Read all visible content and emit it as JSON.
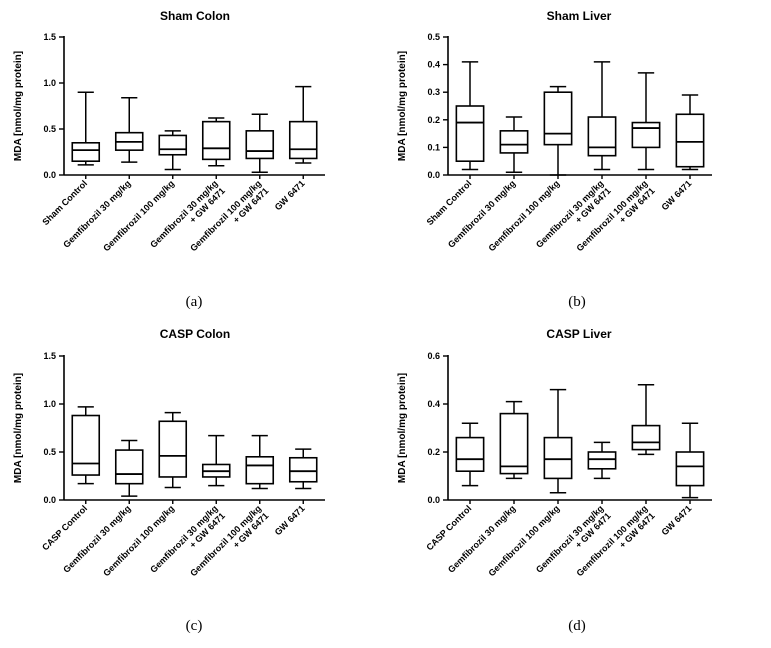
{
  "figure": {
    "panel_labels": [
      "(a)",
      "(b)",
      "(c)",
      "(d)"
    ]
  },
  "chart_data": [
    {
      "type": "box",
      "title": "Sham Colon",
      "ylabel": "MDA [nmol/mg protein]",
      "ylim": [
        0,
        1.5
      ],
      "yticks": [
        0,
        0.5,
        1.0,
        1.5
      ],
      "ytick_labels": [
        "0.0",
        "0.5",
        "1.0",
        "1.5"
      ],
      "categories": [
        "Sham Control",
        "Gemfibrozil 30 mg/kg",
        "Gemfibrozil 100 mg/kg",
        "Gemfibrozil 30 mg/kg + GW 6471",
        "Gemfibrozil 100 mg/kg + GW 6471",
        "GW 6471"
      ],
      "boxes": [
        {
          "min": 0.11,
          "q1": 0.15,
          "median": 0.27,
          "q3": 0.35,
          "max": 0.9
        },
        {
          "min": 0.14,
          "q1": 0.27,
          "median": 0.36,
          "q3": 0.46,
          "max": 0.84
        },
        {
          "min": 0.06,
          "q1": 0.22,
          "median": 0.28,
          "q3": 0.43,
          "max": 0.48
        },
        {
          "min": 0.1,
          "q1": 0.17,
          "median": 0.29,
          "q3": 0.58,
          "max": 0.62
        },
        {
          "min": 0.03,
          "q1": 0.18,
          "median": 0.26,
          "q3": 0.48,
          "max": 0.66
        },
        {
          "min": 0.13,
          "q1": 0.18,
          "median": 0.28,
          "q3": 0.58,
          "max": 0.96
        }
      ]
    },
    {
      "type": "box",
      "title": "Sham Liver",
      "ylabel": "MDA [nmol/mg protein]",
      "ylim": [
        0,
        0.5
      ],
      "yticks": [
        0,
        0.1,
        0.2,
        0.3,
        0.4,
        0.5
      ],
      "ytick_labels": [
        "0.0",
        "0.1",
        "0.2",
        "0.3",
        "0.4",
        "0.5"
      ],
      "categories": [
        "Sham Control",
        "Gemfibrozil 30 mg/kg",
        "Gemfibrozil 100 mg/kg",
        "Gemfibrozil 30 mg/kg + GW 6471",
        "Gemfibrozil 100 mg/kg + GW 6471",
        "GW 6471"
      ],
      "boxes": [
        {
          "min": 0.02,
          "q1": 0.05,
          "median": 0.19,
          "q3": 0.25,
          "max": 0.41
        },
        {
          "min": 0.01,
          "q1": 0.08,
          "median": 0.11,
          "q3": 0.16,
          "max": 0.21
        },
        {
          "min": 0.0,
          "q1": 0.11,
          "median": 0.15,
          "q3": 0.3,
          "max": 0.32
        },
        {
          "min": 0.02,
          "q1": 0.07,
          "median": 0.1,
          "q3": 0.21,
          "max": 0.41
        },
        {
          "min": 0.02,
          "q1": 0.1,
          "median": 0.17,
          "q3": 0.19,
          "max": 0.37
        },
        {
          "min": 0.02,
          "q1": 0.03,
          "median": 0.12,
          "q3": 0.22,
          "max": 0.29
        }
      ]
    },
    {
      "type": "box",
      "title": "CASP Colon",
      "ylabel": "MDA [nmol/mg protein]",
      "ylim": [
        0,
        1.5
      ],
      "yticks": [
        0,
        0.5,
        1.0,
        1.5
      ],
      "ytick_labels": [
        "0.0",
        "0.5",
        "1.0",
        "1.5"
      ],
      "categories": [
        "CASP Control",
        "Gemfibrozil 30 mg/kg",
        "Gemfibrozil 100 mg/kg",
        "Gemfibrozil 30 mg/kg + GW 6471",
        "Gemfibrozil 100 mg/kg + GW 6471",
        "GW 6471"
      ],
      "boxes": [
        {
          "min": 0.17,
          "q1": 0.26,
          "median": 0.38,
          "q3": 0.88,
          "max": 0.97
        },
        {
          "min": 0.04,
          "q1": 0.17,
          "median": 0.27,
          "q3": 0.52,
          "max": 0.62
        },
        {
          "min": 0.13,
          "q1": 0.24,
          "median": 0.46,
          "q3": 0.82,
          "max": 0.91
        },
        {
          "min": 0.15,
          "q1": 0.24,
          "median": 0.3,
          "q3": 0.37,
          "max": 0.67
        },
        {
          "min": 0.12,
          "q1": 0.17,
          "median": 0.36,
          "q3": 0.45,
          "max": 0.67
        },
        {
          "min": 0.12,
          "q1": 0.19,
          "median": 0.3,
          "q3": 0.44,
          "max": 0.53
        }
      ]
    },
    {
      "type": "box",
      "title": "CASP Liver",
      "ylabel": "MDA [nmol/mg protein]",
      "ylim": [
        0,
        0.6
      ],
      "yticks": [
        0,
        0.2,
        0.4,
        0.6
      ],
      "ytick_labels": [
        "0.0",
        "0.2",
        "0.4",
        "0.6"
      ],
      "categories": [
        "CASP Control",
        "Gemfibrozil 30 mg/kg",
        "Gemfibrozil 100 mg/kg",
        "Gemfibrozil 30 mg/kg + GW 6471",
        "Gemfibrozil 100 mg/kg + GW 6471",
        "GW 6471"
      ],
      "boxes": [
        {
          "min": 0.06,
          "q1": 0.12,
          "median": 0.17,
          "q3": 0.26,
          "max": 0.32
        },
        {
          "min": 0.09,
          "q1": 0.11,
          "median": 0.14,
          "q3": 0.36,
          "max": 0.41
        },
        {
          "min": 0.03,
          "q1": 0.09,
          "median": 0.17,
          "q3": 0.26,
          "max": 0.46
        },
        {
          "min": 0.09,
          "q1": 0.13,
          "median": 0.17,
          "q3": 0.2,
          "max": 0.24
        },
        {
          "min": 0.19,
          "q1": 0.21,
          "median": 0.24,
          "q3": 0.31,
          "max": 0.48
        },
        {
          "min": 0.01,
          "q1": 0.06,
          "median": 0.14,
          "q3": 0.2,
          "max": 0.32
        }
      ]
    }
  ]
}
